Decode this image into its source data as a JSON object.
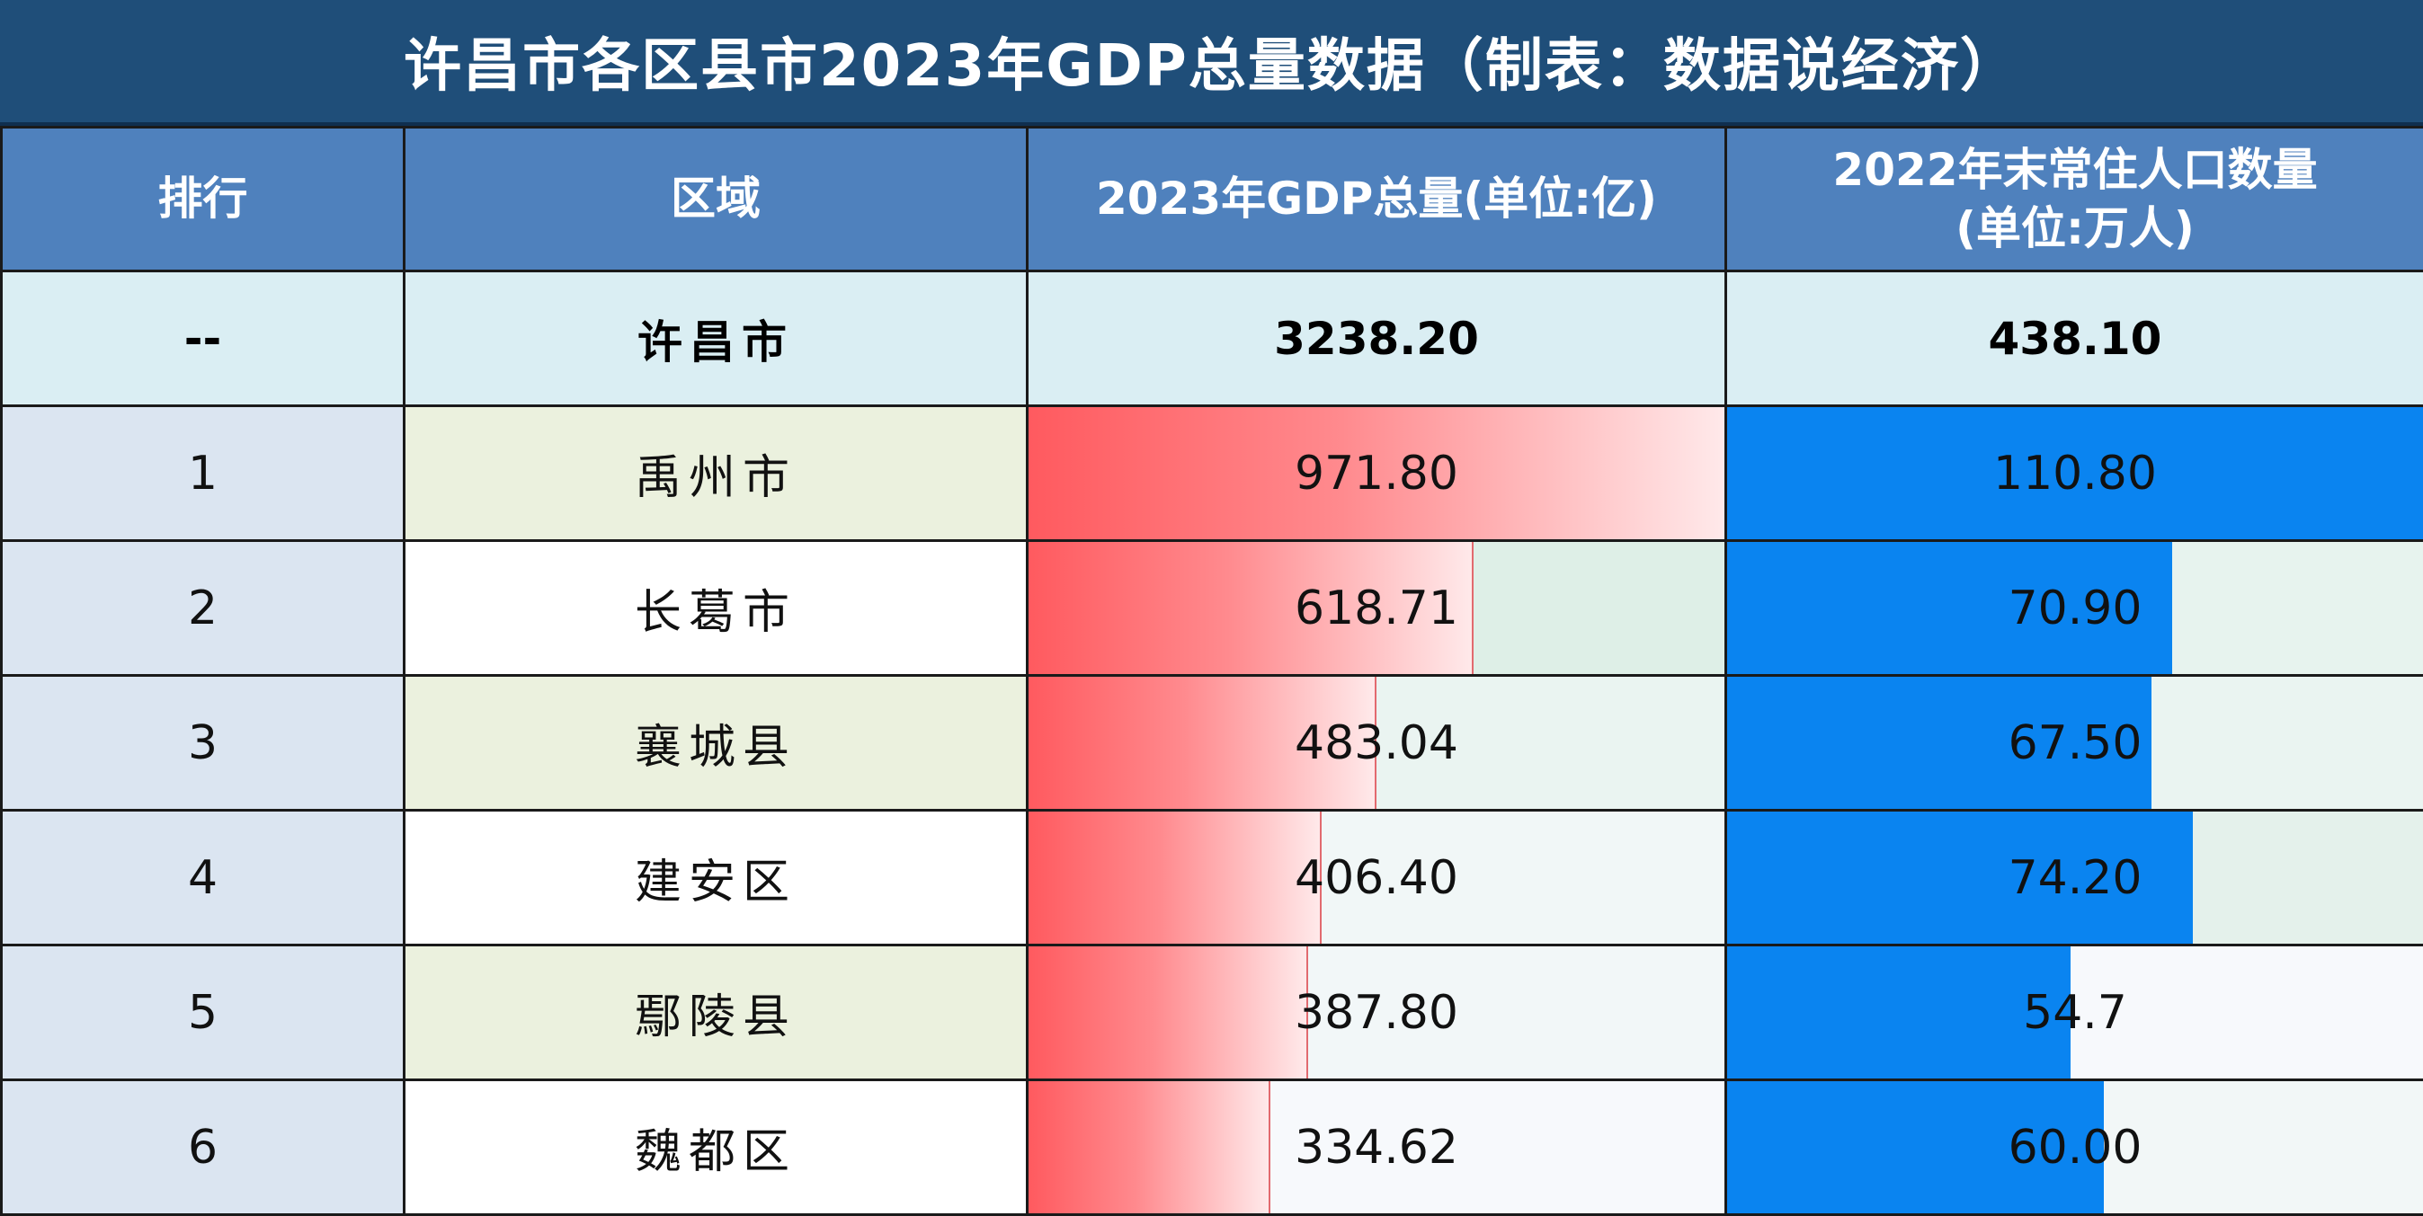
{
  "title": "许昌市各区县市2023年GDP总量数据（制表：数据说经济）",
  "headers": {
    "rank": "排行",
    "region": "区域",
    "gdp_line1": "2023年GDP总量(单位:亿)",
    "pop_line1": "2022年末常住人口数量",
    "pop_line2": "(单位:万人)"
  },
  "total": {
    "rank": "--",
    "region": "许昌市",
    "gdp": "3238.20",
    "pop": "438.10"
  },
  "rows": [
    {
      "rank": "1",
      "region": "禹州市",
      "gdp": "971.80",
      "pop": "110.80",
      "gdp_value": 971.8,
      "pop_value": 110.8
    },
    {
      "rank": "2",
      "region": "长葛市",
      "gdp": "618.71",
      "pop": "70.90",
      "gdp_value": 618.71,
      "pop_value": 70.9
    },
    {
      "rank": "3",
      "region": "襄城县",
      "gdp": "483.04",
      "pop": "67.50",
      "gdp_value": 483.04,
      "pop_value": 67.5
    },
    {
      "rank": "4",
      "region": "建安区",
      "gdp": "406.40",
      "pop": "74.20",
      "gdp_value": 406.4,
      "pop_value": 74.2
    },
    {
      "rank": "5",
      "region": "鄢陵县",
      "gdp": "387.80",
      "pop": "54.7",
      "gdp_value": 387.8,
      "pop_value": 54.7
    },
    {
      "rank": "6",
      "region": "魏都区",
      "gdp": "334.62",
      "pop": "60.00",
      "gdp_value": 334.62,
      "pop_value": 60.0
    }
  ],
  "colors": {
    "gdp_bar": "#ff5a5f",
    "pop_bar": "#0a84f0",
    "scale_high": "#bfe3cc",
    "scale_low": "#f7f9fc"
  }
}
